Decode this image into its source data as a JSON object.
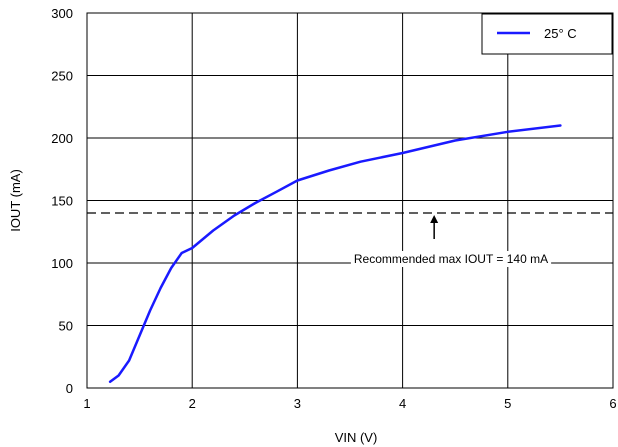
{
  "chart_data": {
    "type": "line",
    "xlabel": "VIN (V)",
    "ylabel": "IOUT (mA)",
    "xlim": [
      1,
      6
    ],
    "ylim": [
      0,
      300
    ],
    "xticks": [
      "1",
      "2",
      "3",
      "4",
      "5",
      "6"
    ],
    "yticks": [
      "0",
      "50",
      "100",
      "150",
      "200",
      "250",
      "300"
    ],
    "grid": true,
    "legend_position": "top-right",
    "series": [
      {
        "name": "25° C",
        "color": "#1a1aff",
        "x": [
          1.22,
          1.3,
          1.4,
          1.5,
          1.6,
          1.7,
          1.8,
          1.9,
          2.0,
          2.2,
          2.4,
          2.6,
          2.8,
          3.0,
          3.3,
          3.6,
          4.0,
          4.5,
          5.0,
          5.5
        ],
        "y": [
          5,
          10,
          22,
          42,
          62,
          80,
          96,
          108,
          112,
          126,
          138,
          148,
          157,
          166,
          174,
          181,
          188,
          198,
          205,
          210
        ]
      }
    ],
    "reference_line": {
      "y": 140,
      "label": "Recommended max IOUT = 140 mA",
      "arrow_x": 4.3
    }
  }
}
